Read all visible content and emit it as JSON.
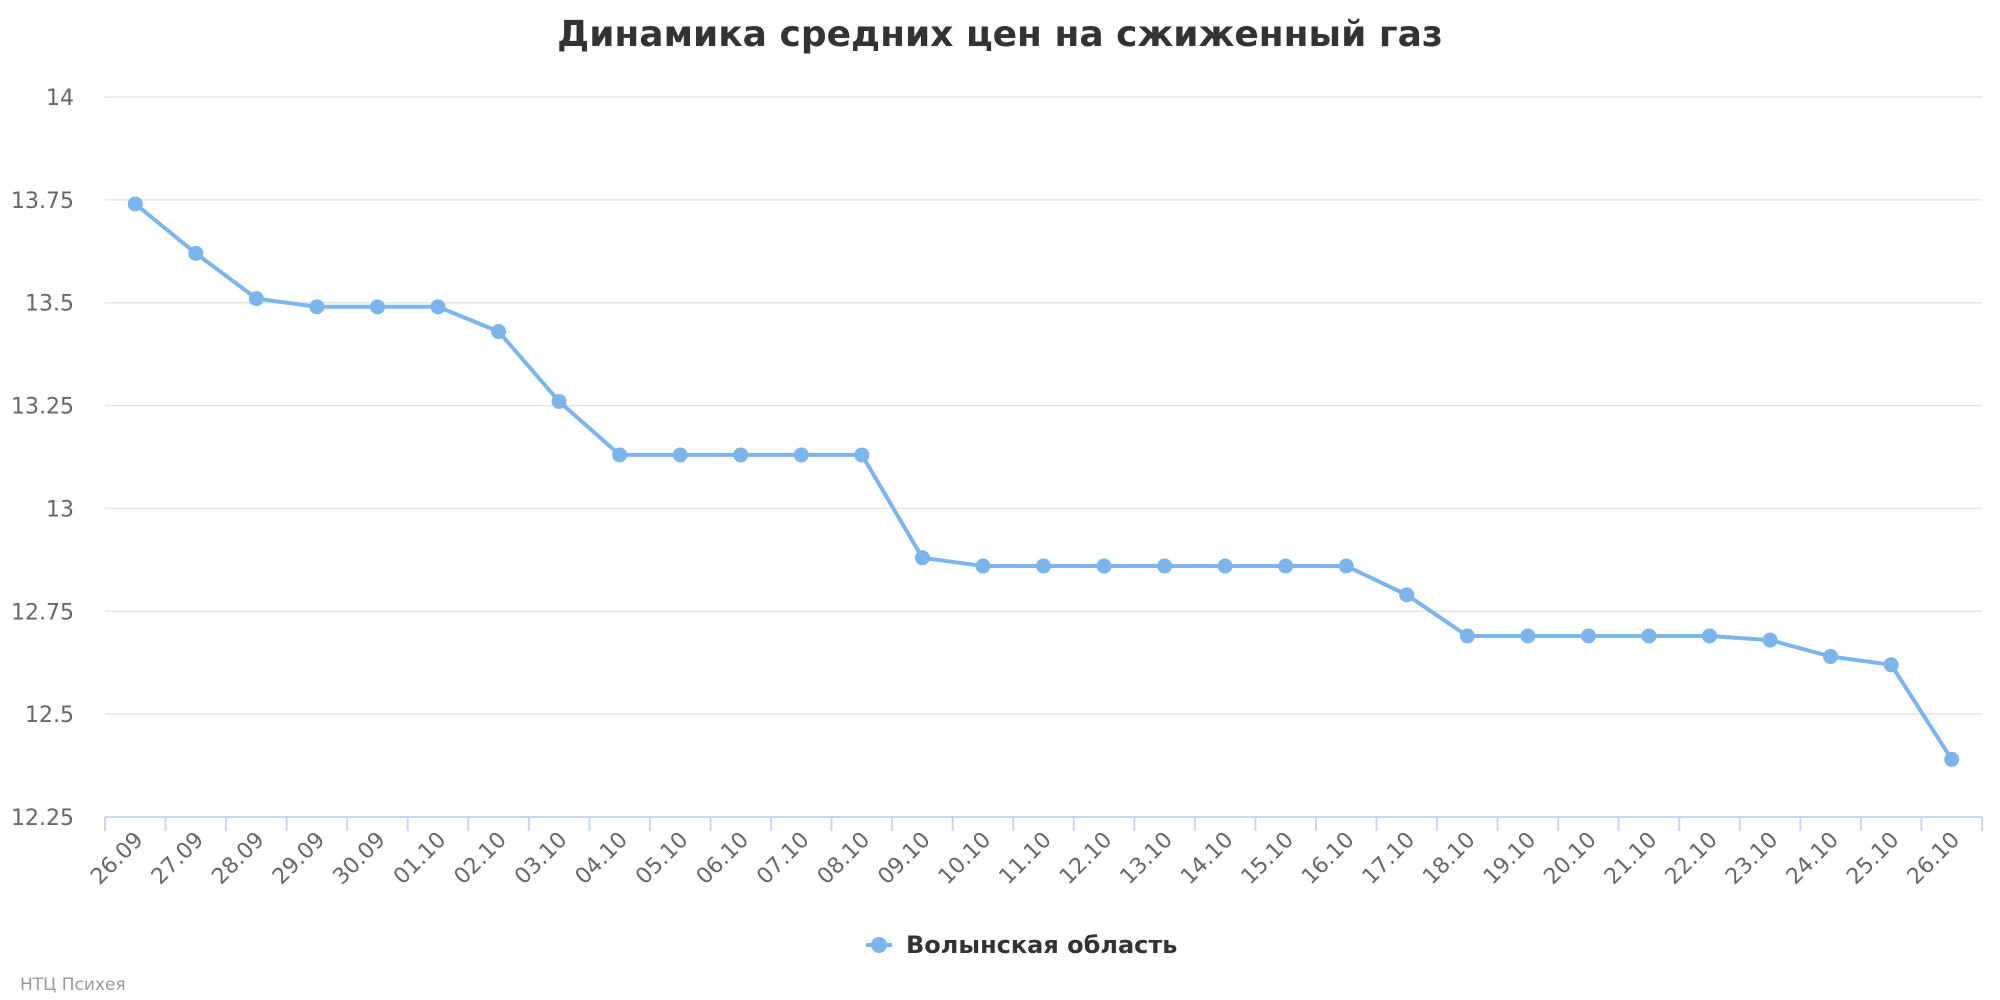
{
  "chart_data": {
    "type": "line",
    "title": "Динамика средних цен на сжиженный газ",
    "xlabel": "",
    "ylabel": "",
    "categories": [
      "26.09",
      "27.09",
      "28.09",
      "29.09",
      "30.09",
      "01.10",
      "02.10",
      "03.10",
      "04.10",
      "05.10",
      "06.10",
      "07.10",
      "08.10",
      "09.10",
      "10.10",
      "11.10",
      "12.10",
      "13.10",
      "14.10",
      "15.10",
      "16.10",
      "17.10",
      "18.10",
      "19.10",
      "20.10",
      "21.10",
      "22.10",
      "23.10",
      "24.10",
      "25.10",
      "26.10"
    ],
    "y_ticks": [
      "12.25",
      "12.5",
      "12.75",
      "13",
      "13.25",
      "13.5",
      "13.75",
      "14"
    ],
    "ylim": [
      12.25,
      14
    ],
    "grid": true,
    "legend_position": "bottom-center",
    "series": [
      {
        "name": "Волынская область",
        "color": "#7cb5ec",
        "values": [
          13.74,
          13.62,
          13.51,
          13.49,
          13.49,
          13.49,
          13.43,
          13.26,
          13.13,
          13.13,
          13.13,
          13.13,
          13.13,
          12.88,
          12.86,
          12.86,
          12.86,
          12.86,
          12.86,
          12.86,
          12.86,
          12.79,
          12.69,
          12.69,
          12.69,
          12.69,
          12.69,
          12.68,
          12.64,
          12.62,
          12.39
        ]
      }
    ]
  },
  "credits": "НТЦ Психея",
  "colors": {
    "grid": "#e6e6e6",
    "axis": "#ccd6eb",
    "series": "#7cb5ec"
  }
}
